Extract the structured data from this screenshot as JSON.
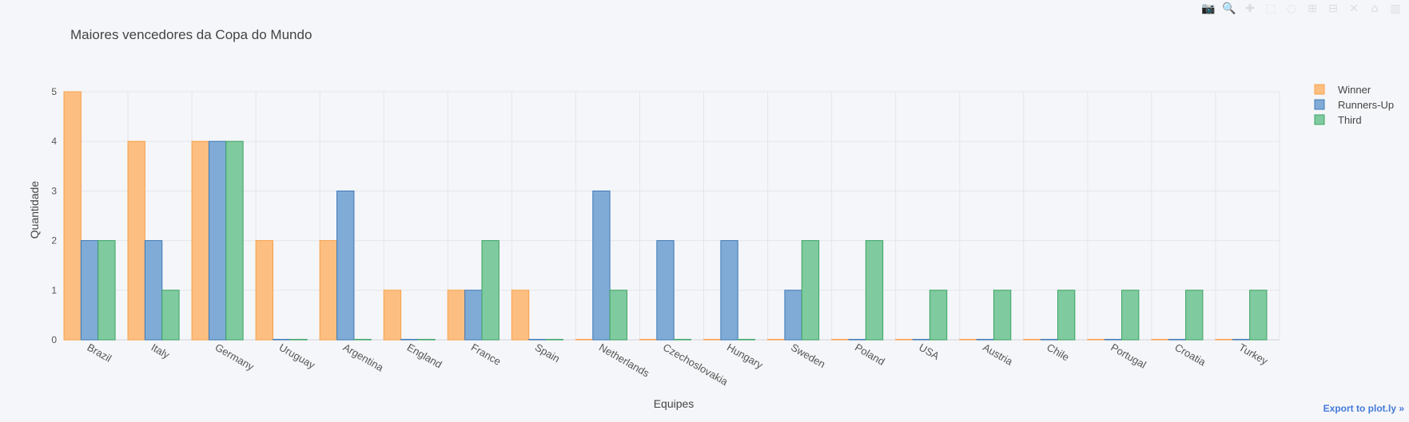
{
  "modebar": {
    "buttons": [
      {
        "name": "camera-icon",
        "glyph": "📷"
      },
      {
        "name": "zoom-icon",
        "glyph": "🔍"
      },
      {
        "name": "pan-icon",
        "glyph": "✚"
      },
      {
        "name": "box-select-icon",
        "glyph": "⬚"
      },
      {
        "name": "lasso-select-icon",
        "glyph": "◌"
      },
      {
        "name": "zoom-in-icon",
        "glyph": "⊞"
      },
      {
        "name": "zoom-out-icon",
        "glyph": "⊟"
      },
      {
        "name": "autoscale-icon",
        "glyph": "✕"
      },
      {
        "name": "home-icon",
        "glyph": "⌂"
      },
      {
        "name": "plotly-logo-icon",
        "glyph": "▥"
      }
    ]
  },
  "export_label": "Export to plot.ly »",
  "chart_data": {
    "type": "bar",
    "title": "Maiores vencedores da Copa do Mundo",
    "xlabel": "Equipes",
    "ylabel": "Quantidade",
    "ylim": [
      0,
      5
    ],
    "yticks": [
      0,
      1,
      2,
      3,
      4,
      5
    ],
    "grid": true,
    "legend_position": "top-right",
    "categories": [
      "Brazil",
      "Italy",
      "Germany",
      "Uruguay",
      "Argentina",
      "England",
      "France",
      "Spain",
      "Netherlands",
      "Czechoslovakia",
      "Hungary",
      "Sweden",
      "Poland",
      "USA",
      "Austria",
      "Chile",
      "Portugal",
      "Croatia",
      "Turkey"
    ],
    "series": [
      {
        "name": "Winner",
        "color": "#fdbf81",
        "stroke": "#f7a04a",
        "values": [
          5,
          4,
          4,
          2,
          2,
          1,
          1,
          1,
          0,
          0,
          0,
          0,
          0,
          0,
          0,
          0,
          0,
          0,
          0
        ]
      },
      {
        "name": "Runners-Up",
        "color": "#80abd6",
        "stroke": "#3d78b5",
        "values": [
          2,
          2,
          4,
          0,
          3,
          0,
          1,
          0,
          3,
          2,
          2,
          1,
          0,
          0,
          0,
          0,
          0,
          0,
          0
        ]
      },
      {
        "name": "Third",
        "color": "#80ca9f",
        "stroke": "#3aa363",
        "values": [
          2,
          1,
          4,
          0,
          0,
          0,
          2,
          0,
          1,
          0,
          0,
          2,
          2,
          1,
          1,
          1,
          1,
          1,
          1
        ]
      }
    ]
  }
}
